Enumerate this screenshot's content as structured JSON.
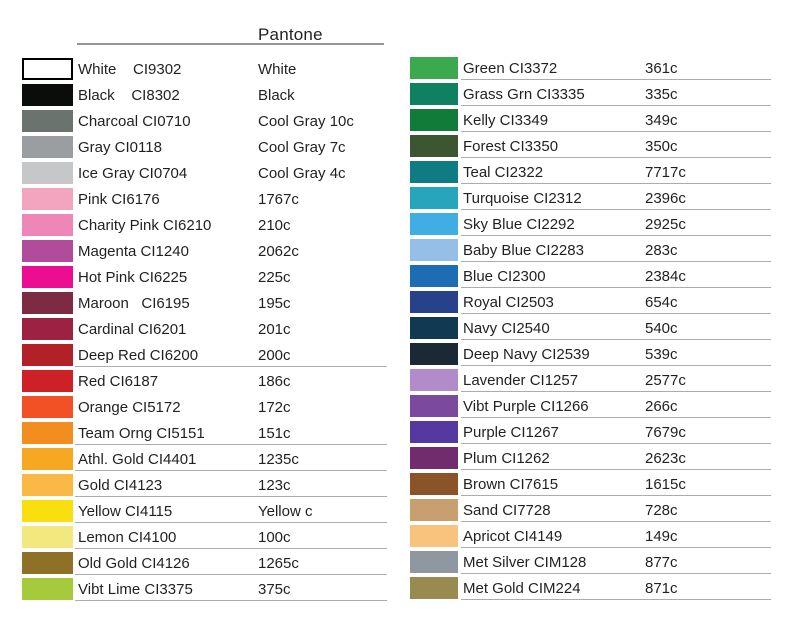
{
  "chart_data": {
    "type": "table",
    "title": "Pantone",
    "columns_meta": [
      "swatch",
      "color name + ink code",
      "pantone value"
    ],
    "left": [
      {
        "label": "White    CI9302",
        "pantone": "White",
        "hex": "#ffffff",
        "border": true,
        "underline": false
      },
      {
        "label": "Black    CI8302",
        "pantone": "Black",
        "hex": "#0b0d0a",
        "border": false,
        "underline": false
      },
      {
        "label": "Charcoal CI0710",
        "pantone": "Cool Gray 10c",
        "hex": "#6b736f",
        "border": false,
        "underline": false
      },
      {
        "label": "Gray CI0118",
        "pantone": "Cool Gray 7c",
        "hex": "#9a9ea1",
        "border": false,
        "underline": false
      },
      {
        "label": "Ice Gray CI0704",
        "pantone": "Cool Gray 4c",
        "hex": "#c5c7c9",
        "border": false,
        "underline": false
      },
      {
        "label": "Pink CI6176",
        "pantone": "1767c",
        "hex": "#f3a5c0",
        "border": false,
        "underline": false
      },
      {
        "label": "Charity Pink CI6210",
        "pantone": "210c",
        "hex": "#ee86b8",
        "border": false,
        "underline": false
      },
      {
        "label": "Magenta CI1240",
        "pantone": "2062c",
        "hex": "#b14c9d",
        "border": false,
        "underline": false
      },
      {
        "label": "Hot Pink CI6225",
        "pantone": "225c",
        "hex": "#ec0e92",
        "border": false,
        "underline": false
      },
      {
        "label": "Maroon   CI6195",
        "pantone": "195c",
        "hex": "#7d2b43",
        "border": false,
        "underline": false
      },
      {
        "label": "Cardinal CI6201",
        "pantone": "201c",
        "hex": "#9d2143",
        "border": false,
        "underline": false
      },
      {
        "label": "Deep Red CI6200",
        "pantone": "200c",
        "hex": "#b22028",
        "border": false,
        "underline": true
      },
      {
        "label": "Red CI6187",
        "pantone": "186c",
        "hex": "#cd2127",
        "border": false,
        "underline": false
      },
      {
        "label": "Orange CI5172",
        "pantone": "172c",
        "hex": "#f15124",
        "border": false,
        "underline": false
      },
      {
        "label": "Team Orng CI5151",
        "pantone": "151c",
        "hex": "#f28d20",
        "border": false,
        "underline": true
      },
      {
        "label": "Athl. Gold CI4401",
        "pantone": "1235c",
        "hex": "#f7a823",
        "border": false,
        "underline": true
      },
      {
        "label": "Gold CI4123",
        "pantone": "123c",
        "hex": "#fab847",
        "border": false,
        "underline": true
      },
      {
        "label": "Yellow CI4115",
        "pantone": "Yellow c",
        "hex": "#f9df10",
        "border": false,
        "underline": true
      },
      {
        "label": "Lemon CI4100",
        "pantone": "100c",
        "hex": "#f1e97e",
        "border": false,
        "underline": true
      },
      {
        "label": "Old Gold CI4126",
        "pantone": "1265c",
        "hex": "#8e7026",
        "border": false,
        "underline": true
      },
      {
        "label": "Vibt Lime CI3375",
        "pantone": "375c",
        "hex": "#a5ca3c",
        "border": false,
        "underline": true
      }
    ],
    "right": [
      {
        "label": "Green CI3372",
        "pantone": "361c",
        "hex": "#3baa4e",
        "border": false,
        "underline": true
      },
      {
        "label": "Grass Grn CI3335",
        "pantone": "335c",
        "hex": "#0f8060",
        "border": false,
        "underline": true
      },
      {
        "label": "Kelly CI3349",
        "pantone": "349c",
        "hex": "#117c3a",
        "border": false,
        "underline": true
      },
      {
        "label": "Forest CI3350",
        "pantone": "350c",
        "hex": "#3c5632",
        "border": false,
        "underline": true
      },
      {
        "label": "Teal CI2322",
        "pantone": "7717c",
        "hex": "#0e7c82",
        "border": false,
        "underline": true
      },
      {
        "label": "Turquoise CI2312",
        "pantone": "2396c",
        "hex": "#27a5bd",
        "border": false,
        "underline": true
      },
      {
        "label": "Sky Blue CI2292",
        "pantone": "2925c",
        "hex": "#41aee3",
        "border": false,
        "underline": true
      },
      {
        "label": "Baby Blue CI2283",
        "pantone": "283c",
        "hex": "#96bfe7",
        "border": false,
        "underline": true
      },
      {
        "label": "Blue CI2300",
        "pantone": "2384c",
        "hex": "#1e6db4",
        "border": false,
        "underline": true
      },
      {
        "label": "Royal CI2503",
        "pantone": "654c",
        "hex": "#27418a",
        "border": false,
        "underline": true
      },
      {
        "label": "Navy CI2540",
        "pantone": "540c",
        "hex": "#113a52",
        "border": false,
        "underline": true
      },
      {
        "label": "Deep Navy CI2539",
        "pantone": "539c",
        "hex": "#1b2936",
        "border": false,
        "underline": true
      },
      {
        "label": "Lavender CI1257",
        "pantone": "2577c",
        "hex": "#b28bc9",
        "border": false,
        "underline": true
      },
      {
        "label": "Vibt Purple CI1266",
        "pantone": "266c",
        "hex": "#7b499e",
        "border": false,
        "underline": true
      },
      {
        "label": "Purple CI1267",
        "pantone": "7679c",
        "hex": "#5639a0",
        "border": false,
        "underline": true
      },
      {
        "label": "Plum CI1262",
        "pantone": "2623c",
        "hex": "#712b6e",
        "border": false,
        "underline": true
      },
      {
        "label": "Brown CI7615",
        "pantone": "1615c",
        "hex": "#8a5428",
        "border": false,
        "underline": true
      },
      {
        "label": "Sand CI7728",
        "pantone": "728c",
        "hex": "#c8a06f",
        "border": false,
        "underline": true
      },
      {
        "label": "Apricot CI4149",
        "pantone": "149c",
        "hex": "#f9c27d",
        "border": false,
        "underline": true
      },
      {
        "label": "Met Silver CIM128",
        "pantone": "877c",
        "hex": "#8f97a0",
        "border": false,
        "underline": true
      },
      {
        "label": "Met Gold CIM224",
        "pantone": "871c",
        "hex": "#998a50",
        "border": false,
        "underline": true
      }
    ],
    "layout_hints": {
      "header_rule_color": "#939598",
      "row_rule_color": "#aaacae",
      "text_color": "#231f20"
    }
  }
}
